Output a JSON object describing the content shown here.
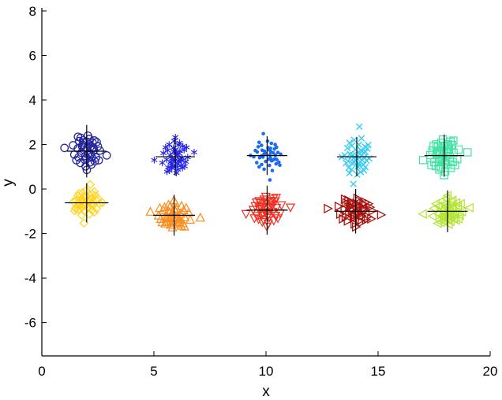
{
  "chart_data": {
    "type": "scatter",
    "title": "",
    "xlabel": "x",
    "ylabel": "y",
    "xlim": [
      0,
      20
    ],
    "ylim": [
      -7.5,
      8.14
    ],
    "x_ticks": [
      0,
      5,
      10,
      15,
      20
    ],
    "y_ticks": [
      8,
      6,
      4,
      2,
      0,
      -2,
      -4,
      -6
    ],
    "grid": false,
    "legend": false,
    "axis_color": "#000000",
    "cross_color": "#000000",
    "base_offsets": [
      [
        0.12,
        -0.35
      ],
      [
        -0.48,
        0.62
      ],
      [
        0.85,
        0.1
      ],
      [
        -0.22,
        -0.8
      ],
      [
        0.33,
        1.15
      ],
      [
        -1.05,
        0.25
      ],
      [
        0.58,
        -0.52
      ],
      [
        1.32,
        0.45
      ],
      [
        -0.75,
        -1.1
      ],
      [
        0.05,
        0.88
      ],
      [
        -0.38,
        0.15
      ],
      [
        0.95,
        -0.95
      ],
      [
        -1.45,
        -0.32
      ],
      [
        0.42,
        0.4
      ],
      [
        -0.12,
        -1.42
      ],
      [
        0.7,
        0.78
      ],
      [
        -0.88,
        0.95
      ],
      [
        0.25,
        -0.18
      ],
      [
        1.1,
        -0.6
      ],
      [
        -0.55,
        0.48
      ],
      [
        0.15,
        1.45
      ],
      [
        -1.2,
        -0.85
      ],
      [
        0.62,
        0.22
      ],
      [
        -0.05,
        -0.62
      ],
      [
        1.55,
        0.05
      ],
      [
        -0.7,
        1.25
      ],
      [
        0.38,
        -1.05
      ],
      [
        -0.25,
        0.35
      ],
      [
        0.9,
        1.0
      ],
      [
        -1.6,
        0.55
      ],
      [
        0.48,
        -0.28
      ],
      [
        -0.95,
        -0.58
      ],
      [
        1.18,
        0.85
      ],
      [
        0.02,
        -1.75
      ],
      [
        -0.42,
        1.02
      ],
      [
        0.78,
        0.35
      ],
      [
        -0.15,
        -0.45
      ],
      [
        1.42,
        -0.85
      ],
      [
        -0.62,
        -0.15
      ],
      [
        0.28,
        0.65
      ],
      [
        -1.02,
        1.35
      ],
      [
        0.55,
        -1.25
      ],
      [
        2.35,
        -0.4
      ],
      [
        -0.35,
        0.82
      ],
      [
        0.08,
        0.28
      ],
      [
        -2.6,
        0.3
      ]
    ],
    "clusters": [
      {
        "id": "cluster-1",
        "marker": "circle",
        "color": "#26269E",
        "center": [
          2.0,
          1.7
        ],
        "scale": [
          0.38,
          0.48
        ],
        "flip": [
          1,
          1
        ],
        "swap": false,
        "count": 46,
        "cross": [
          0.88,
          1.18
        ]
      },
      {
        "id": "cluster-2",
        "marker": "diamond",
        "color": "#FFD41C",
        "center": [
          2.0,
          -0.62
        ],
        "scale": [
          0.4,
          0.35
        ],
        "flip": [
          -1,
          1
        ],
        "swap": true,
        "count": 46,
        "cross": [
          0.97,
          0.88
        ]
      },
      {
        "id": "cluster-3",
        "marker": "asterisk",
        "color": "#2121E8",
        "center": [
          5.95,
          1.45
        ],
        "scale": [
          0.36,
          0.5
        ],
        "flip": [
          1,
          -1
        ],
        "swap": false,
        "count": 46,
        "cross": [
          0.88,
          0.85
        ]
      },
      {
        "id": "cluster-4",
        "marker": "triangle-up",
        "color": "#FB8C1E",
        "center": [
          5.9,
          -1.18
        ],
        "scale": [
          0.45,
          0.38
        ],
        "flip": [
          -1,
          -1
        ],
        "swap": false,
        "count": 46,
        "cross": [
          0.93,
          0.92
        ]
      },
      {
        "id": "cluster-5",
        "marker": "dot",
        "color": "#1C6BE8",
        "center": [
          10.05,
          1.5
        ],
        "scale": [
          0.42,
          0.42
        ],
        "flip": [
          1,
          1
        ],
        "swap": true,
        "count": 46,
        "cross": [
          0.9,
          0.87
        ]
      },
      {
        "id": "cluster-6",
        "marker": "triangle-down",
        "color": "#EE3224",
        "center": [
          10.05,
          -0.95
        ],
        "scale": [
          0.4,
          0.42
        ],
        "flip": [
          -1,
          1
        ],
        "swap": false,
        "count": 46,
        "cross": [
          0.92,
          1.1
        ]
      },
      {
        "id": "cluster-7",
        "marker": "x",
        "color": "#3CCDF0",
        "center": [
          14.05,
          1.45
        ],
        "scale": [
          0.38,
          0.52
        ],
        "flip": [
          1,
          -1
        ],
        "swap": true,
        "count": 46,
        "cross": [
          0.88,
          0.88
        ]
      },
      {
        "id": "cluster-8",
        "marker": "triangle-right",
        "color": "#A81410",
        "center": [
          14.0,
          -1.0
        ],
        "scale": [
          0.48,
          0.4
        ],
        "flip": [
          1,
          1
        ],
        "swap": false,
        "count": 46,
        "cross": [
          0.95,
          1.0
        ]
      },
      {
        "id": "cluster-9",
        "marker": "square",
        "color": "#3FE3A4",
        "center": [
          17.95,
          1.5
        ],
        "scale": [
          0.4,
          0.5
        ],
        "flip": [
          -1,
          1
        ],
        "swap": false,
        "count": 46,
        "cross": [
          0.88,
          0.95
        ]
      },
      {
        "id": "cluster-10",
        "marker": "triangle-left",
        "color": "#B2E532",
        "center": [
          18.1,
          -1.0
        ],
        "scale": [
          0.42,
          0.4
        ],
        "flip": [
          1,
          -1
        ],
        "swap": false,
        "count": 46,
        "cross": [
          0.9,
          0.94
        ]
      }
    ]
  }
}
